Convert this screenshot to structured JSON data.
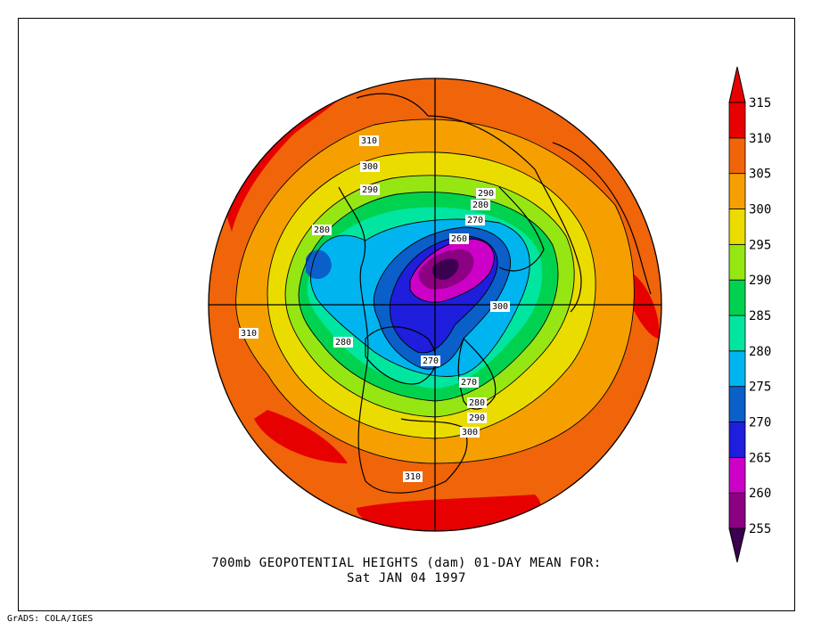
{
  "title_line1": "700mb GEOPOTENTIAL HEIGHTS (dam)   01-DAY MEAN FOR:",
  "title_line2": "Sat JAN 04 1997",
  "credit": "GrADS: COLA/IGES",
  "colorbar": {
    "levels": [
      "255",
      "260",
      "265",
      "270",
      "275",
      "280",
      "285",
      "290",
      "295",
      "300",
      "305",
      "310",
      "315"
    ],
    "colors": [
      "#3c0050",
      "#8c0082",
      "#cd00c8",
      "#1e1edc",
      "#0a5fc8",
      "#00b4f0",
      "#00e6a0",
      "#00d250",
      "#96e614",
      "#ebdc00",
      "#f5a000",
      "#f0640a",
      "#e60000"
    ]
  },
  "contour_labels": [
    {
      "text": "310"
    },
    {
      "text": "300"
    },
    {
      "text": "290"
    },
    {
      "text": "280"
    },
    {
      "text": "290"
    },
    {
      "text": "280"
    },
    {
      "text": "270"
    },
    {
      "text": "260"
    },
    {
      "text": "300"
    },
    {
      "text": "310"
    },
    {
      "text": "280"
    },
    {
      "text": "270"
    },
    {
      "text": "270"
    },
    {
      "text": "280"
    },
    {
      "text": "290"
    },
    {
      "text": "300"
    },
    {
      "text": "310"
    }
  ]
}
